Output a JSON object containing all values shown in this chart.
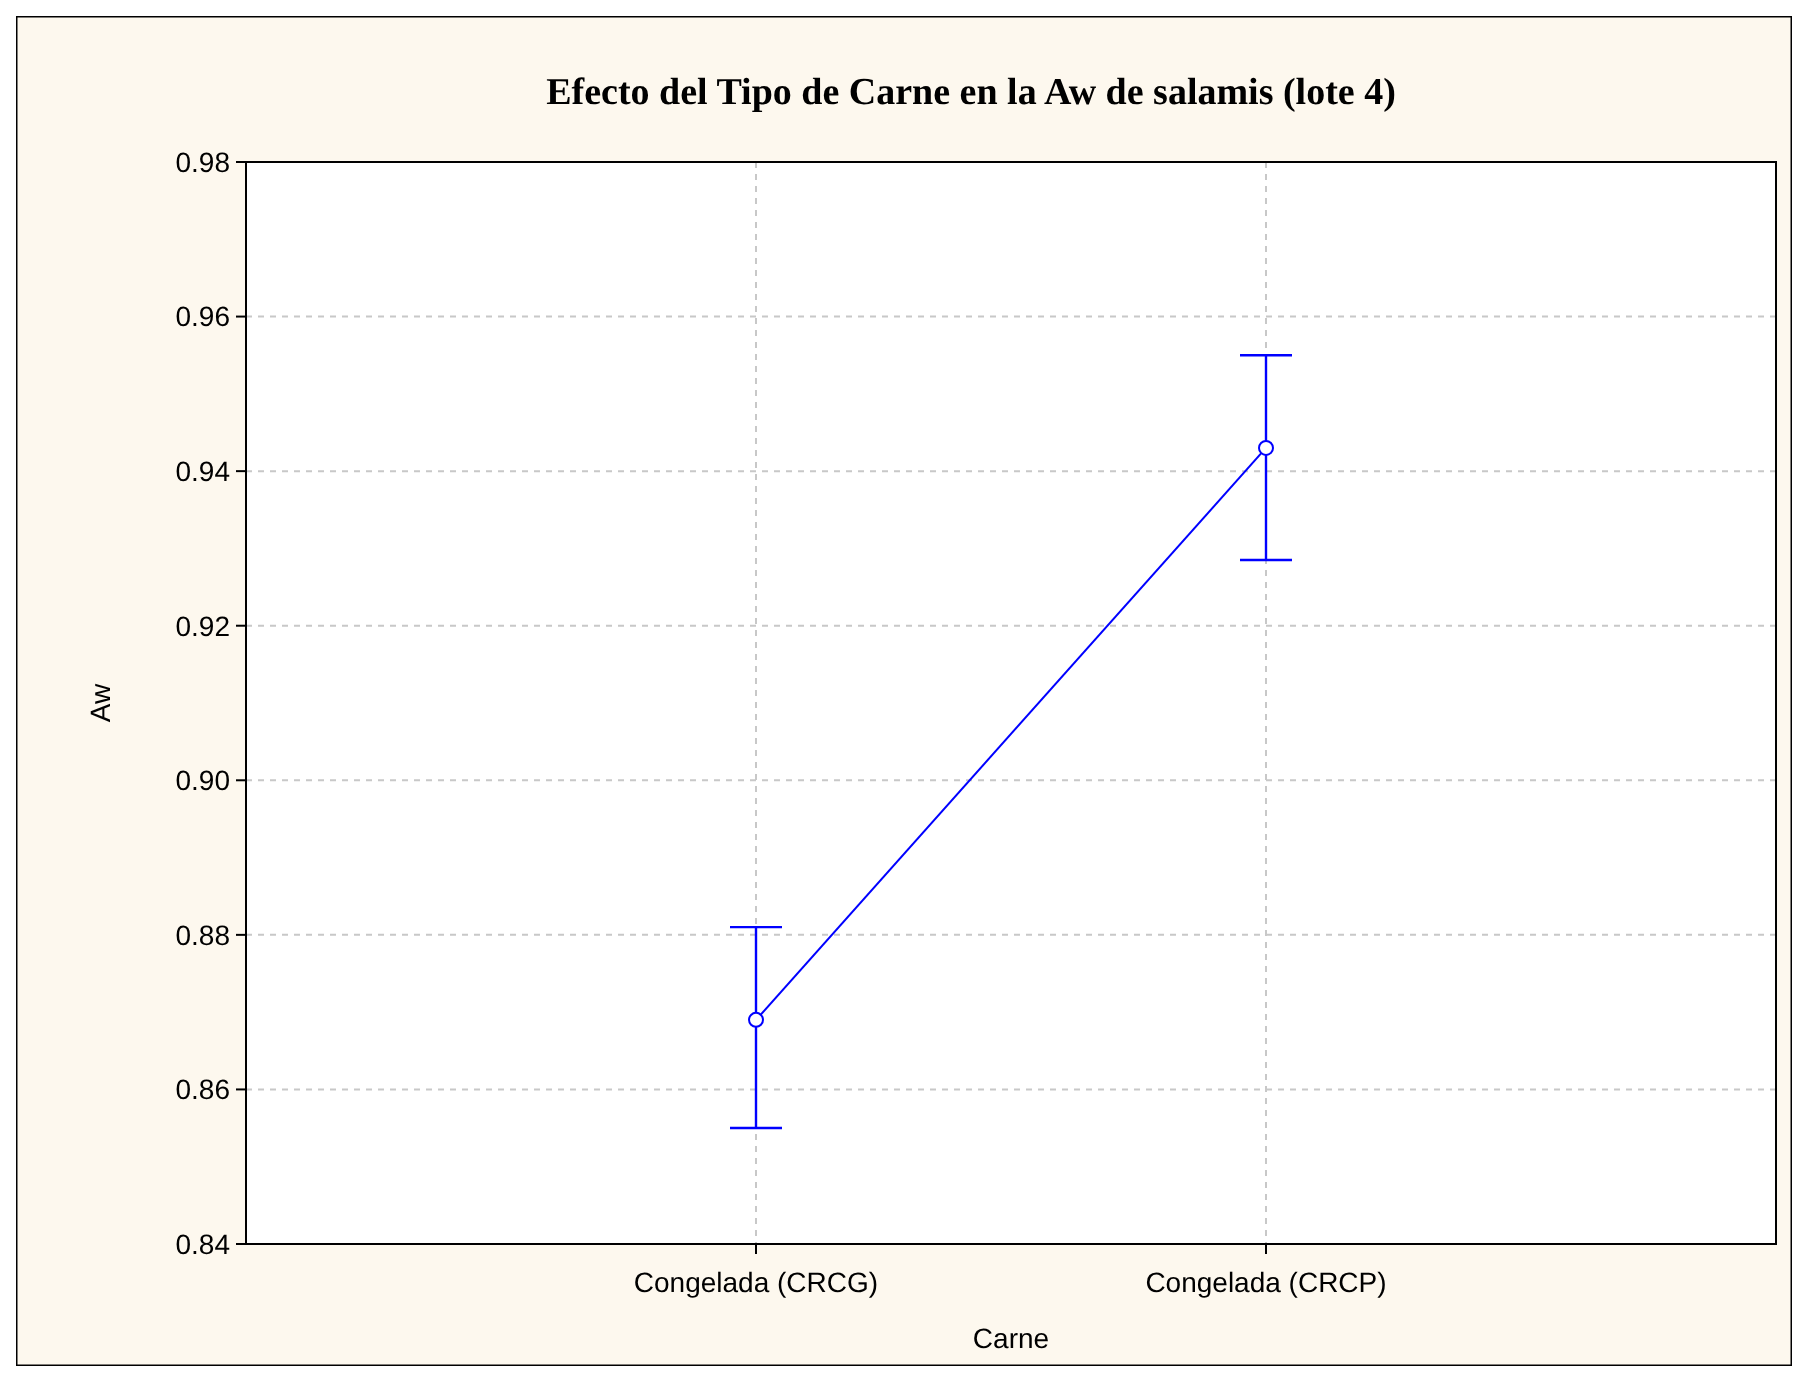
{
  "chart_data": {
    "type": "line",
    "title": "Efecto del Tipo de Carne en la Aw de salamis (lote 4)",
    "xlabel": "Carne",
    "ylabel": "Aw",
    "categories": [
      "Congelada (CRCG)",
      "Congelada (CRCP)"
    ],
    "series": [
      {
        "color": "#0000ff",
        "values": [
          0.869,
          0.943
        ],
        "errors": [
          [
            0.855,
            0.881
          ],
          [
            0.9285,
            0.955
          ]
        ]
      }
    ],
    "ylim": [
      0.84,
      0.98
    ],
    "yticks": [
      {
        "value": 0.84,
        "label": "0.84"
      },
      {
        "value": 0.86,
        "label": "0.86"
      },
      {
        "value": 0.88,
        "label": "0.88"
      },
      {
        "value": 0.9,
        "label": "0.90"
      },
      {
        "value": 0.92,
        "label": "0.92"
      },
      {
        "value": 0.94,
        "label": "0.94"
      },
      {
        "value": 0.96,
        "label": "0.96"
      },
      {
        "value": 0.98,
        "label": "0.98"
      }
    ],
    "grid": true,
    "marker": "circle",
    "line_style": "solid"
  }
}
